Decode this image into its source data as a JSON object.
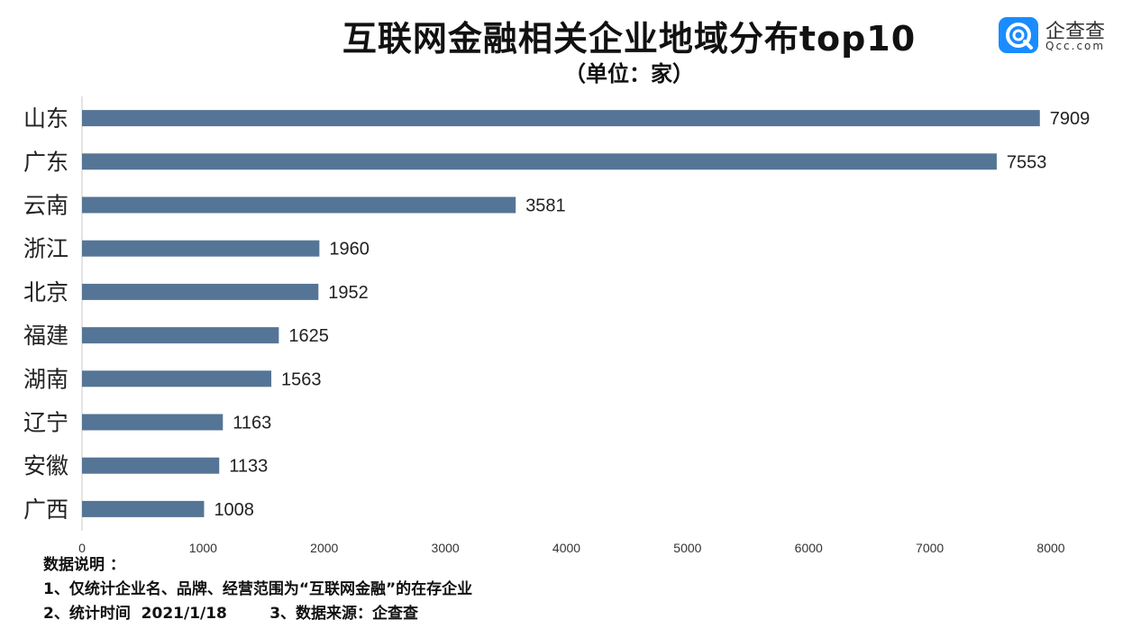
{
  "title": "互联网金融相关企业地域分布top10",
  "subtitle": "（单位：家）",
  "logo": {
    "name": "企查查",
    "domain": "Qcc.com",
    "icon": "qcc-logo-icon",
    "color": "#1a8cff"
  },
  "chart_data": {
    "type": "bar",
    "orientation": "horizontal",
    "categories": [
      "山东",
      "广东",
      "云南",
      "浙江",
      "北京",
      "福建",
      "湖南",
      "辽宁",
      "安徽",
      "广西"
    ],
    "values": [
      7909,
      7553,
      3581,
      1960,
      1952,
      1625,
      1563,
      1163,
      1133,
      1008
    ],
    "value_labels": [
      "7909",
      "7553",
      "3581",
      "1960",
      "1952",
      "1625",
      "1563",
      "1163",
      "1133",
      "1008"
    ],
    "xlim": [
      0,
      8000
    ],
    "xticks": [
      0,
      1000,
      2000,
      3000,
      4000,
      5000,
      6000,
      7000,
      8000
    ],
    "xtick_labels": [
      "0",
      "1000",
      "2000",
      "3000",
      "4000",
      "5000",
      "6000",
      "7000",
      "8000"
    ],
    "bar_color": "#557596",
    "grid": false,
    "legend": "none"
  },
  "notes": {
    "heading": "数据说明 ：",
    "line1": "1、仅统计企业名、品牌、经营范围为“互联网金融”的在存企业",
    "line2": "2、统计时间  2021/1/18        3、数据来源：企查查"
  }
}
